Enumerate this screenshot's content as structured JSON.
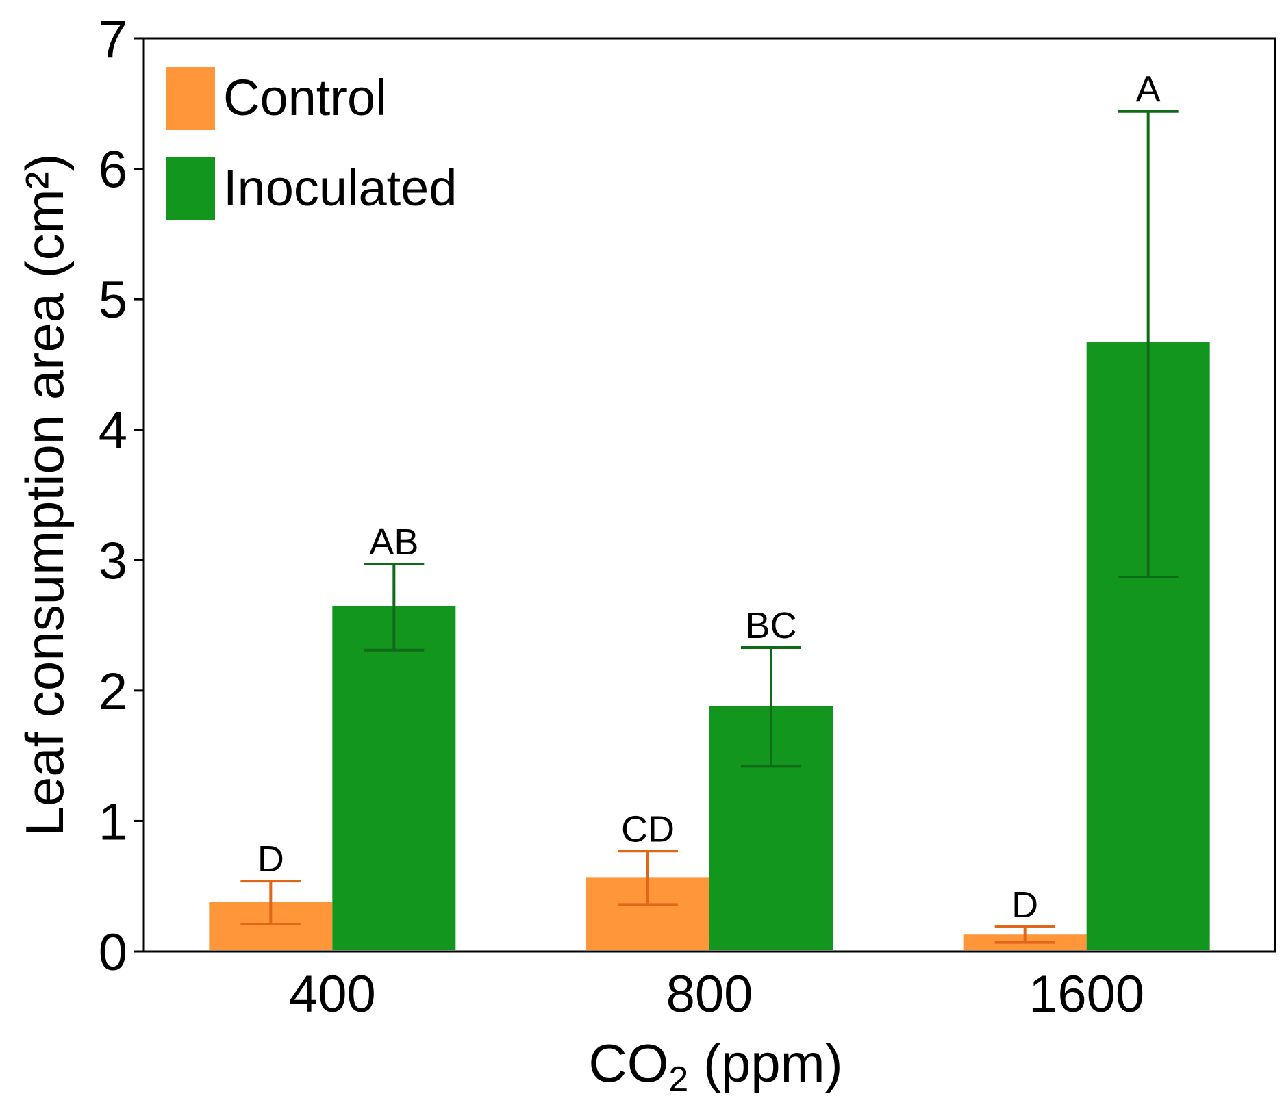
{
  "chart_data": {
    "type": "bar",
    "categories": [
      "400",
      "800",
      "1600"
    ],
    "series": [
      {
        "name": "Control",
        "color": "#FF963A",
        "error_color": "#E0661A",
        "values": [
          0.38,
          0.57,
          0.13
        ],
        "error_low": [
          0.21,
          0.36,
          0.07
        ],
        "error_high": [
          0.54,
          0.77,
          0.19
        ],
        "sig": [
          "D",
          "CD",
          "D"
        ]
      },
      {
        "name": "Inoculated",
        "color": "#13961E",
        "error_color": "#0F6B18",
        "values": [
          2.65,
          1.88,
          4.67
        ],
        "error_low": [
          2.31,
          1.42,
          2.87
        ],
        "error_high": [
          2.97,
          2.33,
          6.44
        ],
        "sig": [
          "AB",
          "BC",
          "A"
        ]
      }
    ],
    "xlabel": "CO₂ (ppm)",
    "xlabel_main": "CO",
    "xlabel_sub": "2",
    "xlabel_rest": " (ppm)",
    "ylabel": "Leaf consumption area (cm²)",
    "ylim": [
      0,
      7
    ],
    "yticks": [
      "0",
      "1",
      "2",
      "3",
      "4",
      "5",
      "6",
      "7"
    ],
    "legend_position": "top-left",
    "grid": false
  }
}
